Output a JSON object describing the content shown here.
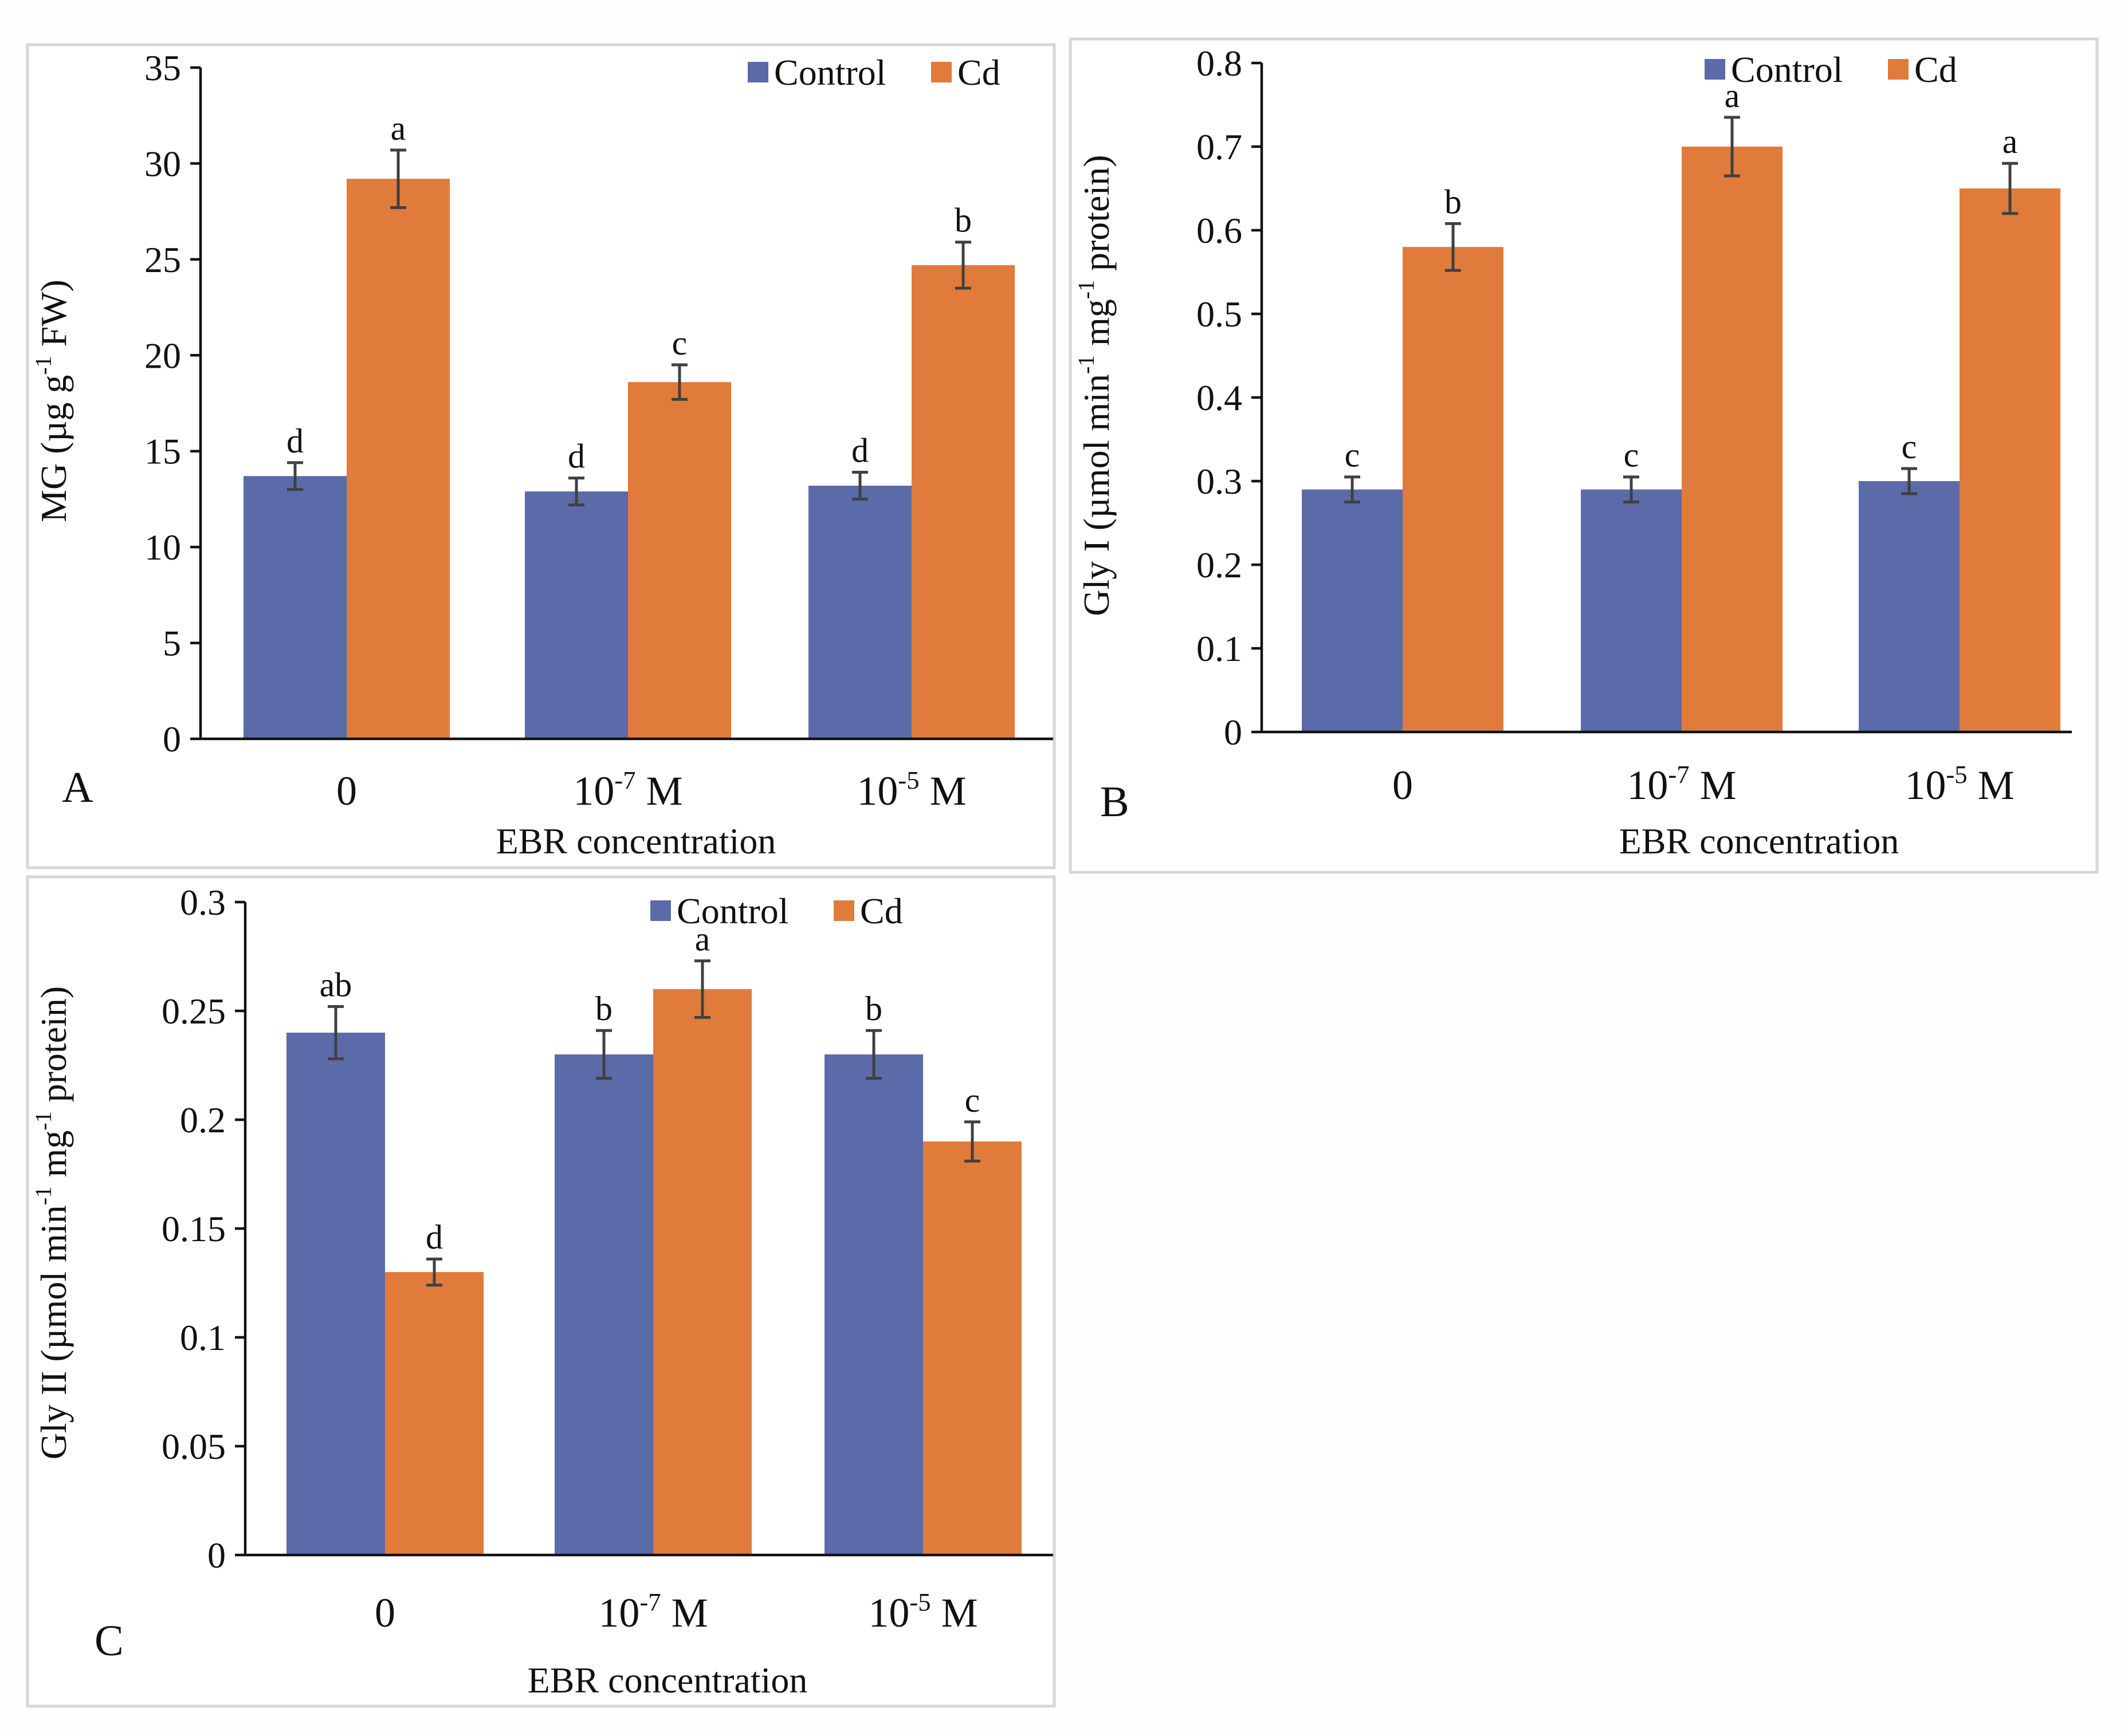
{
  "colors": {
    "control": "#5b6aa8",
    "cd": "#e07b3c",
    "background": "#fefefe",
    "axis": "#111111",
    "error_bar": "#404040"
  },
  "chart_data": [
    {
      "panel": "A",
      "type": "bar",
      "title": "",
      "xlabel": "EBR concentration",
      "ylabel_parts": [
        "MG (µg g",
        "-1",
        " FW)"
      ],
      "categories": [
        {
          "base": "0",
          "exp": "",
          "unit": ""
        },
        {
          "base": "10",
          "exp": "-7",
          "unit": " M"
        },
        {
          "base": "10",
          "exp": "-5",
          "unit": " M"
        }
      ],
      "ylim": [
        0,
        35
      ],
      "yticks": [
        "0",
        "5",
        "10",
        "15",
        "20",
        "25",
        "30",
        "35"
      ],
      "yticks_num": [
        0,
        5,
        10,
        15,
        20,
        25,
        30,
        35
      ],
      "legend_position": "top-right",
      "legend": [
        "Control",
        "Cd"
      ],
      "series": [
        {
          "name": "Control",
          "values": [
            13.7,
            12.9,
            13.2
          ],
          "errors": [
            0.7,
            0.7,
            0.7
          ],
          "letters": [
            "d",
            "d",
            "d"
          ]
        },
        {
          "name": "Cd",
          "values": [
            29.2,
            18.6,
            24.7
          ],
          "errors": [
            1.5,
            0.9,
            1.2
          ],
          "letters": [
            "a",
            "c",
            "b"
          ]
        }
      ]
    },
    {
      "panel": "B",
      "type": "bar",
      "title": "",
      "xlabel": "EBR concentration",
      "ylabel_parts": [
        "Gly I (µmol min",
        "-1",
        " mg",
        "-1",
        " protein)"
      ],
      "categories": [
        {
          "base": "0",
          "exp": "",
          "unit": ""
        },
        {
          "base": "10",
          "exp": "-7",
          "unit": " M"
        },
        {
          "base": "10",
          "exp": "-5",
          "unit": " M"
        }
      ],
      "ylim": [
        0,
        0.8
      ],
      "yticks": [
        "0",
        "0.1",
        "0.2",
        "0.3",
        "0.4",
        "0.5",
        "0.6",
        "0.7",
        "0.8"
      ],
      "yticks_num": [
        0,
        0.1,
        0.2,
        0.3,
        0.4,
        0.5,
        0.6,
        0.7,
        0.8
      ],
      "legend_position": "top-right",
      "legend": [
        "Control",
        "Cd"
      ],
      "series": [
        {
          "name": "Control",
          "values": [
            0.29,
            0.29,
            0.3
          ],
          "errors": [
            0.015,
            0.015,
            0.015
          ],
          "letters": [
            "c",
            "c",
            "c"
          ]
        },
        {
          "name": "Cd",
          "values": [
            0.58,
            0.7,
            0.65
          ],
          "errors": [
            0.028,
            0.035,
            0.03
          ],
          "letters": [
            "b",
            "a",
            "a"
          ]
        }
      ]
    },
    {
      "panel": "C",
      "type": "bar",
      "title": "",
      "xlabel": "EBR concentration",
      "ylabel_parts": [
        "Gly II (µmol min",
        "-1",
        " mg",
        "-1",
        " protein)"
      ],
      "categories": [
        {
          "base": "0",
          "exp": "",
          "unit": ""
        },
        {
          "base": "10",
          "exp": "-7",
          "unit": " M"
        },
        {
          "base": "10",
          "exp": "-5",
          "unit": " M"
        }
      ],
      "ylim": [
        0,
        0.3
      ],
      "yticks": [
        "0",
        "0.05",
        "0.1",
        "0.15",
        "0.2",
        "0.25",
        "0.3"
      ],
      "yticks_num": [
        0,
        0.05,
        0.1,
        0.15,
        0.2,
        0.25,
        0.3
      ],
      "legend_position": "top-center",
      "legend": [
        "Control",
        "Cd"
      ],
      "series": [
        {
          "name": "Control",
          "values": [
            0.24,
            0.23,
            0.23
          ],
          "errors": [
            0.012,
            0.011,
            0.011
          ],
          "letters": [
            "ab",
            "b",
            "b"
          ]
        },
        {
          "name": "Cd",
          "values": [
            0.13,
            0.26,
            0.19
          ],
          "errors": [
            0.006,
            0.013,
            0.009
          ],
          "letters": [
            "d",
            "a",
            "c"
          ]
        }
      ]
    }
  ]
}
